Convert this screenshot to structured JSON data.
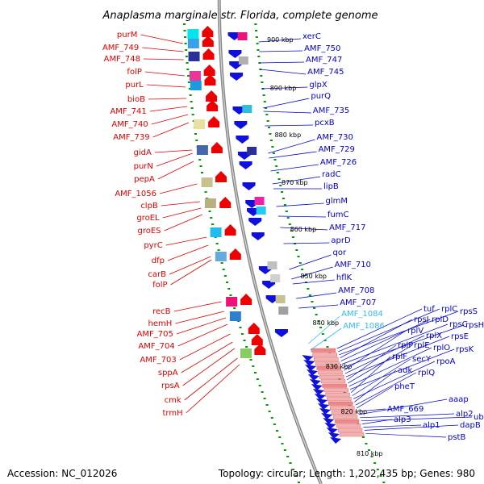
{
  "title": "Anaplasma marginale str. Florida, complete genome",
  "footer": {
    "accession": "Accession: NC_012026",
    "topology": "Topology: circular; Length: 1,202,435 bp; Genes: 980"
  },
  "colors": {
    "left_label": "#e00000",
    "right_label": "#0000cc",
    "highlight_label": "#33bbee",
    "backbone": "#888888",
    "dots": "#009900"
  },
  "kbp_ticks": [
    "900 kbp",
    "890 kbp",
    "880 kbp",
    "870 kbp",
    "860 kbp",
    "850 kbp",
    "840 kbp",
    "830 kbp",
    "820 kbp",
    "810 kbp"
  ],
  "left_labels": [
    "purM",
    "AMF_749",
    "AMF_748",
    "folP",
    "purL",
    "bioB",
    "AMF_741",
    "AMF_740",
    "AMF_739",
    "gidA",
    "purN",
    "pepA",
    "AMF_1056",
    "clpB",
    "groEL",
    "groES",
    "pyrC",
    "dfp",
    "carB",
    "folP",
    "recB",
    "hemH",
    "AMF_705",
    "AMF_704",
    "AMF_703",
    "sppA",
    "rpsA",
    "cmk",
    "trmH"
  ],
  "right_labels": [
    "xerC",
    "AMF_750",
    "AMF_747",
    "AMF_745",
    "glpX",
    "purQ",
    "AMF_735",
    "pcxB",
    "AMF_730",
    "AMF_729",
    "AMF_726",
    "radC",
    "lipB",
    "glmM",
    "fumC",
    "AMF_717",
    "aprD",
    "qor",
    "AMF_710",
    "hflK",
    "AMF_708",
    "AMF_707",
    "AMF_1084",
    "AMF_1086"
  ],
  "cluster_labels": [
    "tuf",
    "rplC",
    "rpsS",
    "rpsJ",
    "rplD",
    "rpsC",
    "rpsH",
    "rplV",
    "rplX",
    "rpsE",
    "rplP",
    "rplE",
    "rplO",
    "rpsK",
    "rplF",
    "secY",
    "rpoA",
    "adk",
    "rplQ",
    "pheT",
    "AMF_669",
    "aaap",
    "alp2",
    "ubiA",
    "alp3",
    "alp1",
    "dapB",
    "pstB"
  ]
}
